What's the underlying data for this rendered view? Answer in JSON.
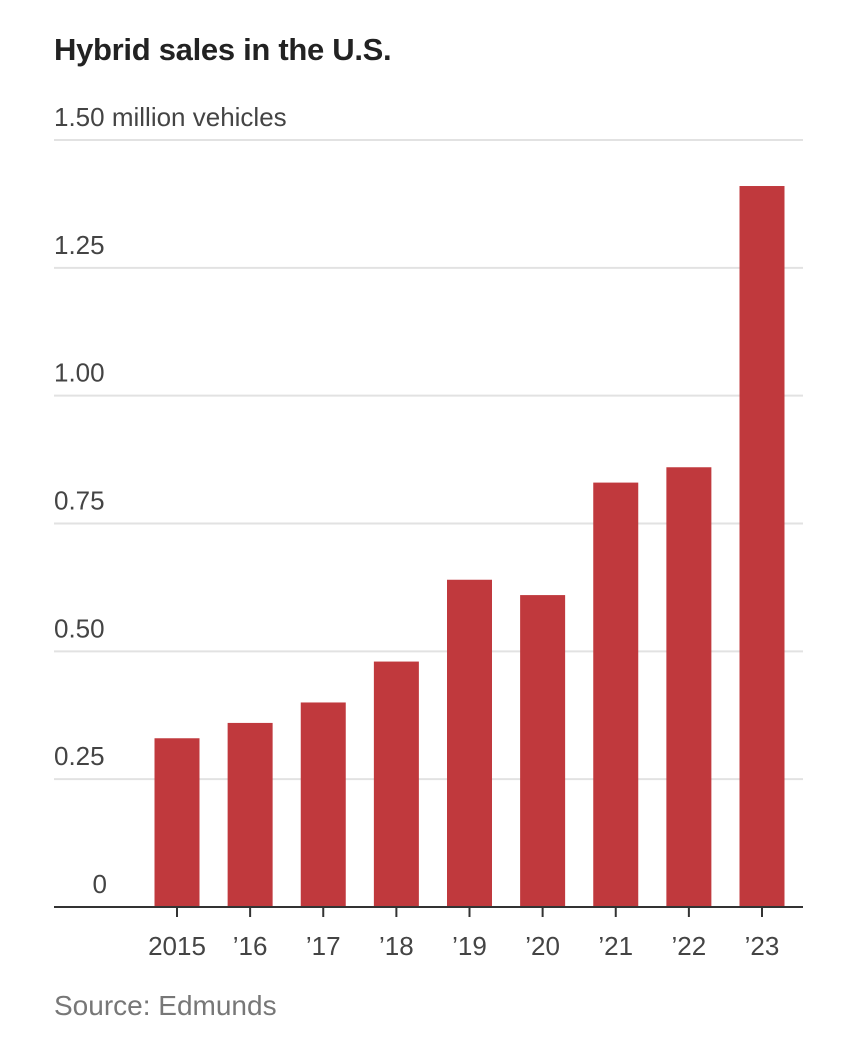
{
  "title": "Hybrid sales in the U.S.",
  "source": "Source: Edmunds",
  "bar_color": "#c0393d",
  "chart_data": {
    "type": "bar",
    "title": "Hybrid sales in the U.S.",
    "ylabel": "million vehicles",
    "categories": [
      "2015",
      "’16",
      "’17",
      "’18",
      "’19",
      "’20",
      "’21",
      "’22",
      "’23"
    ],
    "values": [
      0.33,
      0.36,
      0.4,
      0.48,
      0.64,
      0.61,
      0.83,
      0.86,
      1.41
    ],
    "ylim": [
      0,
      1.5
    ],
    "y_ticks": [
      {
        "value": 0,
        "label": "0"
      },
      {
        "value": 0.25,
        "label": "0.25"
      },
      {
        "value": 0.5,
        "label": "0.50"
      },
      {
        "value": 0.75,
        "label": "0.75"
      },
      {
        "value": 1.0,
        "label": "1.00"
      },
      {
        "value": 1.25,
        "label": "1.25"
      },
      {
        "value": 1.5,
        "label": "1.50 million vehicles"
      }
    ],
    "grid": true,
    "legend": "none"
  }
}
